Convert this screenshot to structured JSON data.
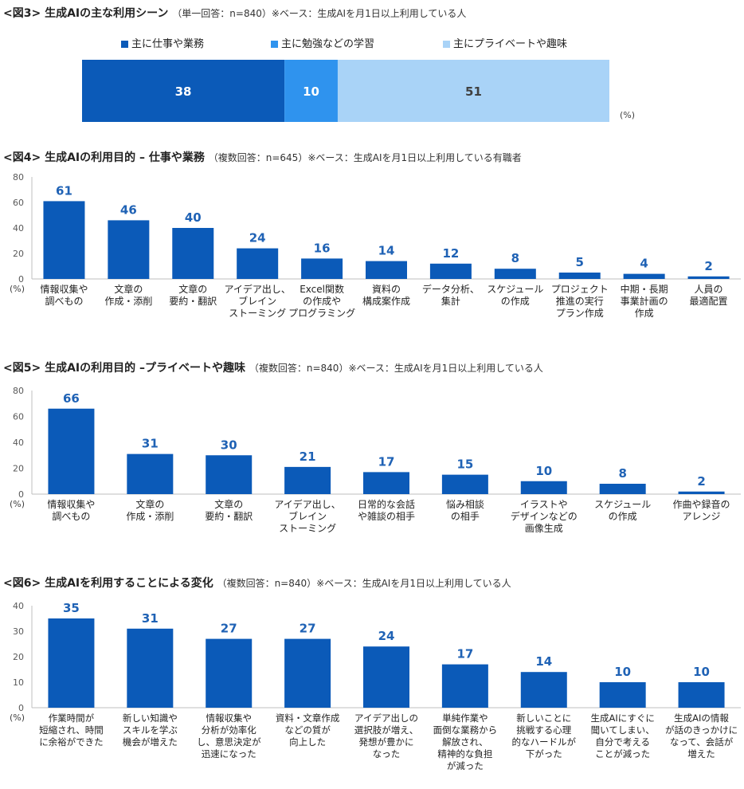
{
  "chart_data": [
    {
      "id": "fig3",
      "type": "bar",
      "orientation": "horizontal-stacked",
      "title": "<図3> 生成AIの主な利用シーン",
      "subtitle": "（単一回答：n=840）※ベース：生成AIを月1日以上利用している人",
      "unit": "(%)",
      "series": [
        {
          "name": "主に仕事や業務",
          "value": 38,
          "color": "#0b5ab8"
        },
        {
          "name": "主に勉強などの学習",
          "value": 10,
          "color": "#2f93ee"
        },
        {
          "name": "主にプライベートや趣味",
          "value": 51,
          "color": "#a9d3f7"
        }
      ]
    },
    {
      "id": "fig4",
      "type": "bar",
      "title": "<図4> 生成AIの利用目的 – 仕事や業務",
      "subtitle": "（複数回答：n=645）※ベース：生成AIを月1日以上利用している有職者",
      "unit": "(%)",
      "ylim": [
        0,
        80
      ],
      "yticks": [
        0,
        20,
        40,
        60,
        80
      ],
      "categories": [
        "情報収集や\n調べもの",
        "文章の\n作成・添削",
        "文章の\n要約・翻訳",
        "アイデア出し、\nブレイン\nストーミング",
        "Excel関数\nの作成や\nプログラミング",
        "資料の\n構成案作成",
        "データ分析、\n集計",
        "スケジュール\nの作成",
        "プロジェクト\n推進の実行\nプラン作成",
        "中期・長期\n事業計画の\n作成",
        "人員の\n最適配置"
      ],
      "values": [
        61,
        46,
        40,
        24,
        16,
        14,
        12,
        8,
        5,
        4,
        2
      ]
    },
    {
      "id": "fig5",
      "type": "bar",
      "title": "<図5> 生成AIの利用目的 –プライベートや趣味",
      "subtitle": "（複数回答：n=840）※ベース：生成AIを月1日以上利用している人",
      "unit": "(%)",
      "ylim": [
        0,
        80
      ],
      "yticks": [
        0,
        20,
        40,
        60,
        80
      ],
      "categories": [
        "情報収集や\n調べもの",
        "文章の\n作成・添削",
        "文章の\n要約・翻訳",
        "アイデア出し、\nブレイン\nストーミング",
        "日常的な会話\nや雑談の相手",
        "悩み相談\nの相手",
        "イラストや\nデザインなどの\n画像生成",
        "スケジュール\nの作成",
        "作曲や録音の\nアレンジ"
      ],
      "values": [
        66,
        31,
        30,
        21,
        17,
        15,
        10,
        8,
        2
      ]
    },
    {
      "id": "fig6",
      "type": "bar",
      "title": "<図6> 生成AIを利用することによる変化",
      "subtitle": "（複数回答：n=840）※ベース：生成AIを月1日以上利用している人",
      "unit": "(%)",
      "ylim": [
        0,
        40
      ],
      "yticks": [
        0,
        10,
        20,
        30,
        40
      ],
      "categories": [
        "作業時間が\n短縮され、時間\nに余裕ができた",
        "新しい知識や\nスキルを学ぶ\n機会が増えた",
        "情報収集や\n分析が効率化\nし、意思決定が\n迅速になった",
        "資料・文章作成\nなどの質が\n向上した",
        "アイデア出しの\n選択肢が増え、\n発想が豊かに\nなった",
        "単純作業や\n面倒な業務から\n解放され、\n精神的な負担\nが減った",
        "新しいことに\n挑戦する心理\n的なハードルが\n下がった",
        "生成AIにすぐに\n聞いてしまい、\n自分で考える\nことが減った",
        "生成AIの情報\nが話のきっかけに\nなって、会話が\n増えた"
      ],
      "values": [
        35,
        31,
        27,
        27,
        24,
        17,
        14,
        10,
        10
      ]
    }
  ],
  "colors": {
    "bar": "#0b5ab8",
    "label": "#1f62b5",
    "axis": "#bfbfbf",
    "tick": "#595959"
  }
}
